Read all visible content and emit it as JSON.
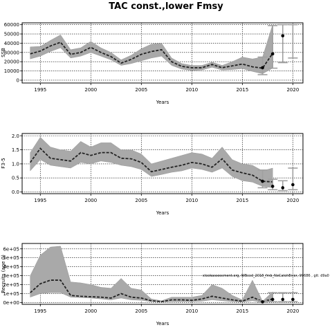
{
  "figure": {
    "title": "TAC const.,lower Fmsy",
    "annotation": "stockassessment.org, WBcod_2018_fmb_NoCatchError, 99686 , git: d9a0"
  },
  "chart_data": [
    {
      "type": "line",
      "panel": "ssb",
      "ylabel": "SSB",
      "xlabel": "Years",
      "xlim": [
        1993.2,
        2021.0
      ],
      "ylim": [
        -3000,
        62000
      ],
      "xticks": [
        1995,
        2000,
        2005,
        2010,
        2015,
        2020
      ],
      "yticks": [
        0,
        10000,
        20000,
        30000,
        40000,
        50000,
        60000
      ],
      "ytick_labels": [
        "0",
        "10000",
        "20000",
        "30000",
        "40000",
        "50000",
        "60000"
      ],
      "grid": true,
      "band": {
        "x": [
          1994,
          1995,
          1996,
          1997,
          1998,
          1999,
          2000,
          2001,
          2002,
          2003,
          2004,
          2005,
          2006,
          2007,
          2008,
          2009,
          2010,
          2011,
          2012,
          2013,
          2014,
          2015,
          2016,
          2017,
          2018
        ],
        "lower": [
          23000,
          26000,
          31000,
          35000,
          24000,
          26000,
          30000,
          26000,
          22000,
          16000,
          18000,
          21000,
          24000,
          26000,
          16000,
          12000,
          10500,
          11000,
          14000,
          11000,
          11500,
          12500,
          9500,
          7000,
          13000
        ],
        "upper": [
          36000,
          36500,
          43000,
          49000,
          33000,
          35000,
          42000,
          35000,
          30000,
          22000,
          27000,
          34000,
          39000,
          40000,
          24000,
          18000,
          16000,
          16000,
          19500,
          16000,
          20000,
          25000,
          23000,
          25000,
          60000
        ]
      },
      "series": [
        {
          "x": [
            1994,
            1995,
            1996,
            1997,
            1998,
            1999,
            2000,
            2001,
            2002,
            2003,
            2004,
            2005,
            2006,
            2007,
            2008,
            2009,
            2010,
            2011,
            2012,
            2013,
            2014,
            2015,
            2016,
            2017,
            2018
          ],
          "values": [
            28500,
            31500,
            37000,
            41000,
            28000,
            30000,
            35500,
            30000,
            25500,
            18500,
            22500,
            28000,
            31000,
            33000,
            20000,
            15000,
            13500,
            13500,
            17000,
            13500,
            15500,
            17500,
            14500,
            13000,
            29000
          ]
        }
      ],
      "points": {
        "x": [
          2017,
          2018,
          2019
        ],
        "values": [
          13500,
          28500,
          48000
        ]
      },
      "intervals": [
        {
          "x": 2017,
          "lower": 6000,
          "upper": 25000
        },
        {
          "x": 2018,
          "lower": 13000,
          "upper": 59000
        },
        {
          "x": 2019,
          "lower": 19000,
          "upper": 60000
        },
        {
          "x": 2020,
          "lower": 24000,
          "upper": 60000
        }
      ]
    },
    {
      "type": "line",
      "panel": "f",
      "ylabel": "F3-5",
      "xlabel": "Years",
      "xlim": [
        1993.2,
        2021.0
      ],
      "ylim": [
        -0.06,
        2.08
      ],
      "xticks": [
        1995,
        2000,
        2005,
        2010,
        2015,
        2020
      ],
      "yticks": [
        0.0,
        0.5,
        1.0,
        1.5,
        2.0
      ],
      "ytick_labels": [
        "0.0",
        "0.5",
        "1.0",
        "1.5",
        "2.0"
      ],
      "grid": true,
      "band": {
        "x": [
          1994,
          1995,
          1996,
          1997,
          1998,
          1999,
          2000,
          2001,
          2002,
          2003,
          2004,
          2005,
          2006,
          2007,
          2008,
          2009,
          2010,
          2011,
          2012,
          2013,
          2014,
          2015,
          2016,
          2017,
          2018
        ],
        "lower": [
          0.75,
          1.15,
          0.95,
          0.9,
          0.85,
          1.05,
          1.0,
          1.1,
          1.05,
          0.95,
          0.9,
          0.8,
          0.55,
          0.62,
          0.7,
          0.75,
          0.85,
          0.8,
          0.7,
          0.85,
          0.55,
          0.4,
          0.35,
          0.2,
          0.15
        ],
        "upper": [
          1.4,
          1.95,
          1.6,
          1.5,
          1.45,
          1.8,
          1.6,
          1.75,
          1.75,
          1.5,
          1.5,
          1.35,
          1.0,
          1.1,
          1.2,
          1.3,
          1.4,
          1.35,
          1.2,
          1.6,
          1.15,
          1.0,
          0.95,
          0.75,
          0.85
        ]
      },
      "series": [
        {
          "x": [
            1994,
            1995,
            1996,
            1997,
            1998,
            1999,
            2000,
            2001,
            2002,
            2003,
            2004,
            2005,
            2006,
            2007,
            2008,
            2009,
            2010,
            2011,
            2012,
            2013,
            2014,
            2015,
            2016,
            2017,
            2018
          ],
          "values": [
            1.05,
            1.55,
            1.2,
            1.15,
            1.1,
            1.4,
            1.3,
            1.4,
            1.4,
            1.2,
            1.18,
            1.05,
            0.72,
            0.8,
            0.88,
            0.95,
            1.05,
            1.0,
            0.88,
            1.18,
            0.78,
            0.68,
            0.6,
            0.38,
            0.36
          ]
        }
      ],
      "points": {
        "x": [
          2017,
          2018,
          2019,
          2020
        ],
        "values": [
          0.38,
          0.2,
          0.15,
          0.26
        ]
      },
      "intervals": [
        {
          "x": 2017,
          "lower": 0.15,
          "upper": 0.78
        },
        {
          "x": 2018,
          "lower": 0.08,
          "upper": 0.45
        },
        {
          "x": 2019,
          "lower": 0.05,
          "upper": 0.4
        },
        {
          "x": 2020,
          "lower": 0.08,
          "upper": 0.85
        }
      ]
    },
    {
      "type": "line",
      "panel": "recruitment",
      "ylabel": "Recruits (age 0)",
      "xlabel": "Years",
      "xlim": [
        1993.2,
        2021.0
      ],
      "ylim": [
        -20000,
        660000
      ],
      "xticks": [
        1995,
        2000,
        2005,
        2010,
        2015,
        2020
      ],
      "yticks": [
        0,
        100000,
        200000,
        300000,
        400000,
        500000,
        600000
      ],
      "ytick_labels": [
        "0e+00",
        "1e+05",
        "2e+05",
        "3e+05",
        "4e+05",
        "5e+05",
        "6e+05"
      ],
      "grid": true,
      "band": {
        "x": [
          1994,
          1995,
          1996,
          1997,
          1998,
          1999,
          2000,
          2001,
          2002,
          2003,
          2004,
          2005,
          2006,
          2007,
          2008,
          2009,
          2010,
          2011,
          2012,
          2013,
          2014,
          2015,
          2016,
          2017,
          2018
        ],
        "lower": [
          60000,
          100000,
          110000,
          110000,
          60000,
          55000,
          50000,
          40000,
          30000,
          50000,
          30000,
          25000,
          10000,
          5000,
          10000,
          10000,
          10000,
          15000,
          30000,
          20000,
          10000,
          5000,
          20000,
          2000,
          10000
        ],
        "upper": [
          300000,
          530000,
          620000,
          630000,
          230000,
          220000,
          200000,
          170000,
          160000,
          270000,
          160000,
          140000,
          40000,
          20000,
          60000,
          60000,
          60000,
          80000,
          200000,
          160000,
          80000,
          30000,
          250000,
          15000,
          120000
        ]
      },
      "series": [
        {
          "x": [
            1994,
            1995,
            1996,
            1997,
            1998,
            1999,
            2000,
            2001,
            2002,
            2003,
            2004,
            2005,
            2006,
            2007,
            2008,
            2009,
            2010,
            2011,
            2012,
            2013,
            2014,
            2015,
            2016,
            2017,
            2018
          ],
          "values": [
            110000,
            210000,
            250000,
            250000,
            80000,
            70000,
            65000,
            60000,
            50000,
            100000,
            60000,
            50000,
            20000,
            10000,
            30000,
            30000,
            25000,
            40000,
            70000,
            50000,
            30000,
            15000,
            60000,
            10000,
            40000
          ]
        }
      ],
      "points": {
        "x": [
          2017,
          2018,
          2019,
          2020
        ],
        "values": [
          8000,
          35000,
          35000,
          35000
        ]
      },
      "intervals": [
        {
          "x": 2017,
          "lower": 2000,
          "upper": 20000
        },
        {
          "x": 2018,
          "lower": 10000,
          "upper": 110000
        },
        {
          "x": 2019,
          "lower": 10000,
          "upper": 110000
        },
        {
          "x": 2020,
          "lower": 10000,
          "upper": 110000
        }
      ]
    }
  ]
}
